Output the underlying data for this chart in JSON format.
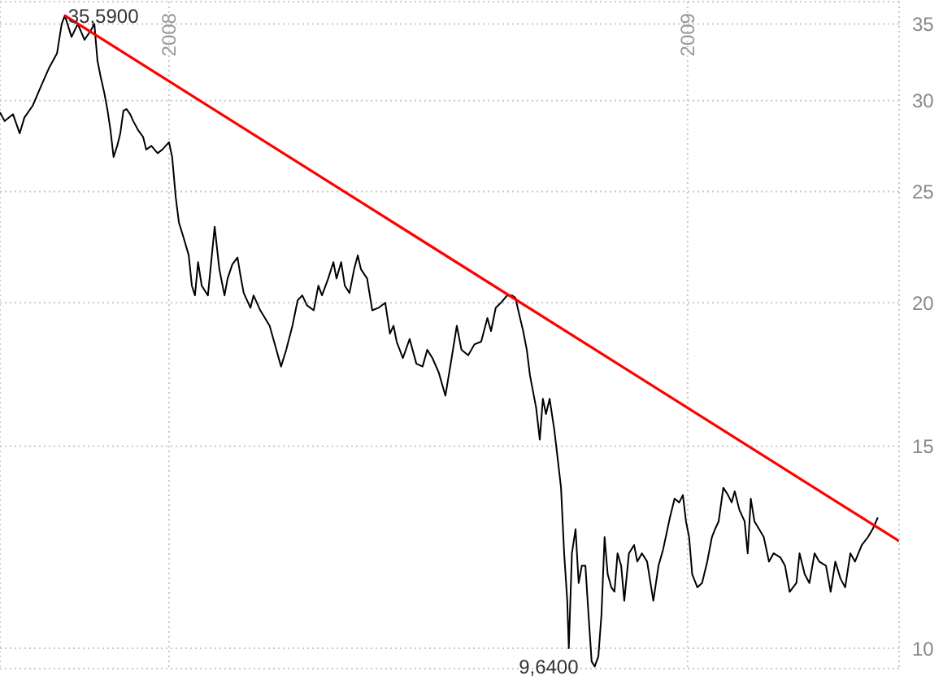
{
  "chart_data": {
    "type": "line",
    "log": "y",
    "grid": true,
    "legend": false,
    "marker": "none",
    "line_style": "solid",
    "xlim": [
      2007.674,
      2009.408
    ],
    "xticks": [
      2008,
      2009
    ],
    "ylim": [
      9.6,
      36.6
    ],
    "yticks": [
      10,
      15,
      20,
      25,
      30,
      35
    ],
    "annotations": [
      {
        "text": "35,5900",
        "x": 2007.799,
        "y": 35.59
      },
      {
        "text": "9,6400",
        "x": 2008.821,
        "y": 9.64
      }
    ],
    "series": [
      {
        "color": "#000000",
        "x": [
          2007.674,
          2007.683,
          2007.699,
          2007.712,
          2007.721,
          2007.737,
          2007.752,
          2007.768,
          2007.784,
          2007.793,
          2007.799,
          2007.812,
          2007.824,
          2007.837,
          2007.85,
          2007.856,
          2007.862,
          2007.868,
          2007.875,
          2007.881,
          2007.887,
          2007.893,
          2007.9,
          2007.906,
          2007.912,
          2007.918,
          2007.925,
          2007.931,
          2007.94,
          2007.95,
          2007.956,
          2007.966,
          2007.978,
          2007.987,
          2008.0,
          2008.006,
          2008.013,
          2008.019,
          2008.028,
          2008.038,
          2008.044,
          2008.05,
          2008.056,
          2008.063,
          2008.075,
          2008.088,
          2008.097,
          2008.107,
          2008.113,
          2008.122,
          2008.132,
          2008.138,
          2008.144,
          2008.157,
          2008.163,
          2008.176,
          2008.185,
          2008.194,
          2008.207,
          2008.216,
          2008.226,
          2008.238,
          2008.248,
          2008.257,
          2008.266,
          2008.279,
          2008.288,
          2008.295,
          2008.307,
          2008.317,
          2008.323,
          2008.332,
          2008.339,
          2008.348,
          2008.357,
          2008.364,
          2008.37,
          2008.382,
          2008.392,
          2008.404,
          2008.417,
          2008.426,
          2008.433,
          2008.439,
          2008.451,
          2008.464,
          2008.477,
          2008.489,
          2008.498,
          2008.508,
          2008.52,
          2008.533,
          2008.545,
          2008.555,
          2008.564,
          2008.577,
          2008.589,
          2008.602,
          2008.614,
          2008.621,
          2008.63,
          2008.64,
          2008.652,
          2008.661,
          2008.668,
          2008.677,
          2008.683,
          2008.69,
          2008.696,
          2008.708,
          2008.715,
          2008.721,
          2008.727,
          2008.734,
          2008.743,
          2008.749,
          2008.756,
          2008.762,
          2008.768,
          2008.771,
          2008.777,
          2008.784,
          2008.79,
          2008.796,
          2008.803,
          2008.809,
          2008.815,
          2008.821,
          2008.828,
          2008.834,
          2008.84,
          2008.846,
          2008.853,
          2008.859,
          2008.865,
          2008.872,
          2008.878,
          2008.887,
          2008.897,
          2008.903,
          2008.912,
          2008.922,
          2008.934,
          2008.944,
          2008.953,
          2008.966,
          2008.975,
          2008.984,
          2008.991,
          2008.997,
          2009.003,
          2009.009,
          2009.019,
          2009.028,
          2009.038,
          2009.047,
          2009.053,
          2009.06,
          2009.069,
          2009.078,
          2009.085,
          2009.091,
          2009.1,
          2009.11,
          2009.116,
          2009.122,
          2009.129,
          2009.138,
          2009.147,
          2009.157,
          2009.166,
          2009.179,
          2009.188,
          2009.197,
          2009.21,
          2009.216,
          2009.226,
          2009.235,
          2009.245,
          2009.254,
          2009.267,
          2009.276,
          2009.285,
          2009.295,
          2009.304,
          2009.314,
          2009.323,
          2009.336,
          2009.348,
          2009.357,
          2009.367
        ],
        "values": [
          29.3,
          28.8,
          29.2,
          28.1,
          29.0,
          29.7,
          30.8,
          32.0,
          33.0,
          35.0,
          35.59,
          34.1,
          35.0,
          33.9,
          34.6,
          35.0,
          32.5,
          31.5,
          30.5,
          29.5,
          28.3,
          26.8,
          27.4,
          28.1,
          29.4,
          29.5,
          29.2,
          28.8,
          28.3,
          27.9,
          27.2,
          27.4,
          27.0,
          27.2,
          27.6,
          26.8,
          24.7,
          23.5,
          22.8,
          22.0,
          20.7,
          20.3,
          21.7,
          20.7,
          20.3,
          23.3,
          21.4,
          20.3,
          21.0,
          21.6,
          21.9,
          21.1,
          20.4,
          19.8,
          20.3,
          19.7,
          19.4,
          19.1,
          18.2,
          17.6,
          18.2,
          19.1,
          20.1,
          20.3,
          19.9,
          19.7,
          20.7,
          20.3,
          21.0,
          21.7,
          21.0,
          21.7,
          20.7,
          20.4,
          21.4,
          22.0,
          21.4,
          21.0,
          19.7,
          19.8,
          20.0,
          18.8,
          19.1,
          18.5,
          17.9,
          18.6,
          17.7,
          17.6,
          18.2,
          17.9,
          17.4,
          16.6,
          17.9,
          19.1,
          18.2,
          18.0,
          18.4,
          18.5,
          19.4,
          18.9,
          19.8,
          20.0,
          20.3,
          20.3,
          20.2,
          19.4,
          18.9,
          18.2,
          17.3,
          16.2,
          15.2,
          16.5,
          16.0,
          16.5,
          15.5,
          14.7,
          13.8,
          12.1,
          11.0,
          10.0,
          12.1,
          12.7,
          11.4,
          11.8,
          11.8,
          10.7,
          9.74,
          9.64,
          9.84,
          10.7,
          12.5,
          11.6,
          11.3,
          11.2,
          12.1,
          11.8,
          11.0,
          12.1,
          12.3,
          11.9,
          12.1,
          11.9,
          11.0,
          11.8,
          12.2,
          13.0,
          13.5,
          13.4,
          13.6,
          12.9,
          12.5,
          11.6,
          11.3,
          11.4,
          11.9,
          12.5,
          12.7,
          12.9,
          13.8,
          13.6,
          13.4,
          13.7,
          13.2,
          12.9,
          12.1,
          13.5,
          12.9,
          12.7,
          12.5,
          11.9,
          12.1,
          12.0,
          11.8,
          11.2,
          11.4,
          12.1,
          11.6,
          11.4,
          12.1,
          11.9,
          11.8,
          11.2,
          11.9,
          11.5,
          11.3,
          12.1,
          11.9,
          12.3,
          12.5,
          12.7,
          13.0
        ]
      },
      {
        "type": "line",
        "color": "#ff0000",
        "x": [
          2007.799,
          2009.408
        ],
        "values": [
          35.59,
          12.4
        ]
      }
    ]
  }
}
